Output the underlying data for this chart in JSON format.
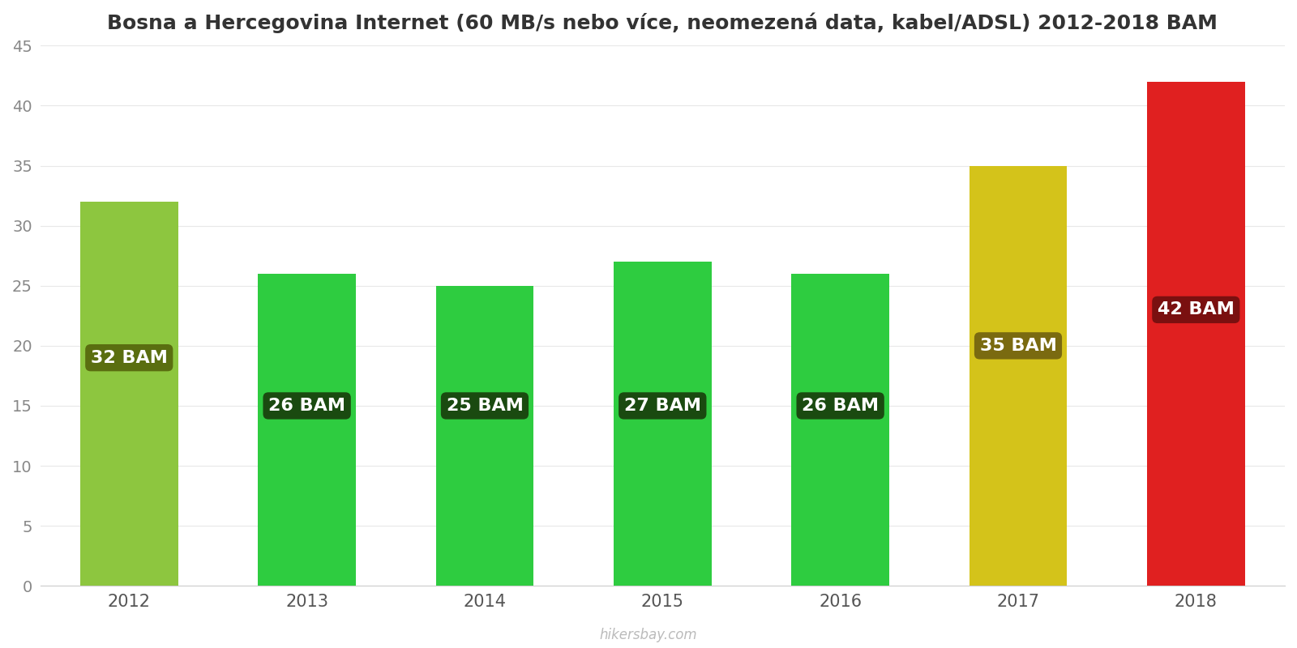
{
  "title": "Bosna a Hercegovina Internet (60 MB/s nebo více, neomezená data, kabel/ADSL) 2012-2018 BAM",
  "years": [
    2012,
    2013,
    2014,
    2015,
    2016,
    2017,
    2018
  ],
  "values": [
    32,
    26,
    25,
    27,
    26,
    35,
    42
  ],
  "bar_colors": [
    "#8dc63f",
    "#2ecc40",
    "#2ecc40",
    "#2ecc40",
    "#2ecc40",
    "#d4c31a",
    "#e02020"
  ],
  "label_bg_colors": [
    "#5a6e10",
    "#1a4a10",
    "#1a4a10",
    "#1a4a10",
    "#1a4a10",
    "#7a6a10",
    "#7a1010"
  ],
  "labels": [
    "32 BAM",
    "26 BAM",
    "25 BAM",
    "27 BAM",
    "26 BAM",
    "35 BAM",
    "42 BAM"
  ],
  "label_y_positions": [
    19,
    15,
    15,
    15,
    15,
    20,
    23
  ],
  "ylim": [
    0,
    45
  ],
  "yticks": [
    0,
    5,
    10,
    15,
    20,
    25,
    30,
    35,
    40,
    45
  ],
  "background_color": "#ffffff",
  "watermark": "hikersbay.com",
  "title_fontsize": 18,
  "bar_width": 0.55
}
